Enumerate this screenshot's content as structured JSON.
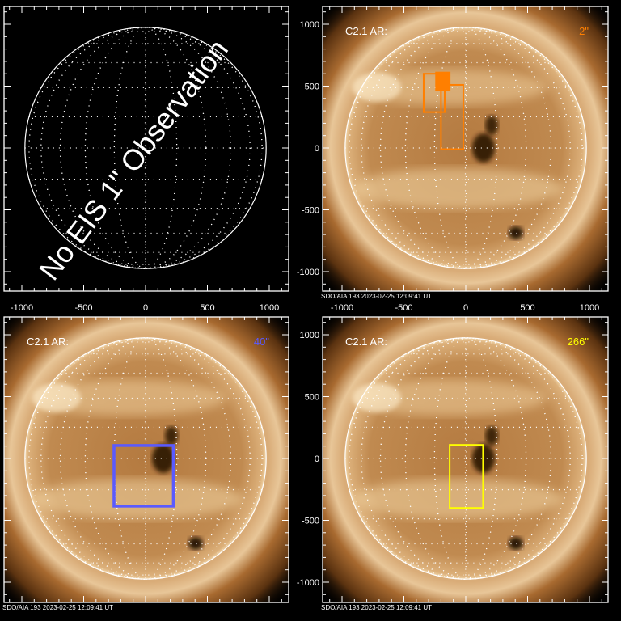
{
  "axes": {
    "x_ticks": [
      "-1000",
      "-500",
      "0",
      "500",
      "1000"
    ],
    "y_ticks": [
      "1000",
      "500",
      "0",
      "-500",
      "-1000"
    ]
  },
  "panels": [
    {
      "id": "no-observation",
      "has_image": false,
      "overlay_text": "No EIS 1\" Observation",
      "show_x_ticks": true,
      "show_y_ticks": false
    },
    {
      "id": "2arcsec",
      "has_image": true,
      "label": "C2.1  AR:",
      "slit_label": "2\"",
      "box_color": "#ff7f00",
      "caption": "SDO/AIA  193    2023-02-25  12:09:41 UT",
      "show_x_ticks": true,
      "show_y_ticks": true
    },
    {
      "id": "40arcsec",
      "has_image": true,
      "label": "C2.1  AR:",
      "slit_label": "40\"",
      "box_color": "#5a5aff",
      "caption": "SDO/AIA  193    2023-02-25  12:09:41 UT",
      "show_x_ticks": false,
      "show_y_ticks": false
    },
    {
      "id": "266arcsec",
      "has_image": true,
      "label": "C2.1  AR:",
      "slit_label": "266\"",
      "box_color": "#ffff00",
      "caption": "SDO/AIA  193    2023-02-25  12:09:41 UT",
      "show_x_ticks": false,
      "show_y_ticks": true
    }
  ]
}
